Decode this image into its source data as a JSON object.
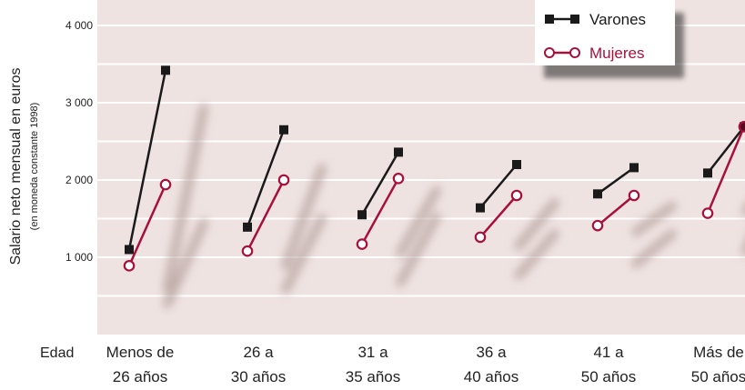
{
  "chart_data": {
    "type": "line",
    "ylabel": "Salario neto mensual en euros",
    "ylabel_sub": "(en moneda constante 1998)",
    "xaxis_caption": "Edad",
    "ylim": [
      0,
      4000
    ],
    "y_ticks": [
      {
        "value": 1000,
        "label": "1 000"
      },
      {
        "value": 2000,
        "label": "2 000"
      },
      {
        "value": 3000,
        "label": "3 000"
      },
      {
        "value": 4000,
        "label": "4 000"
      }
    ],
    "gridlines_every": 500,
    "categories": [
      {
        "line1": "Menos de",
        "line2": "26 años"
      },
      {
        "line1": "26 a",
        "line2": "30 años"
      },
      {
        "line1": "31 a",
        "line2": "35 años"
      },
      {
        "line1": "36 a",
        "line2": "40 años"
      },
      {
        "line1": "41 a",
        "line2": "50 años"
      },
      {
        "line1": "Más de",
        "line2": "50 años"
      }
    ],
    "series": [
      {
        "name": "Varones",
        "color": "#1a1a1a",
        "marker": "filled-square",
        "pairs": [
          [
            1100,
            3420
          ],
          [
            1390,
            2650
          ],
          [
            1550,
            2360
          ],
          [
            1640,
            2200
          ],
          [
            1820,
            2160
          ],
          [
            2090,
            2690
          ]
        ]
      },
      {
        "name": "Mujeres",
        "color": "#a8103c",
        "marker": "hollow-circle",
        "pairs": [
          [
            890,
            1940
          ],
          [
            1080,
            2000
          ],
          [
            1170,
            2020
          ],
          [
            1260,
            1800
          ],
          [
            1410,
            1800
          ],
          [
            1570,
            2690
          ]
        ]
      }
    ],
    "legend_position": "top-right",
    "background_color": "#efe3e1",
    "grid_color": "#ffffff"
  }
}
